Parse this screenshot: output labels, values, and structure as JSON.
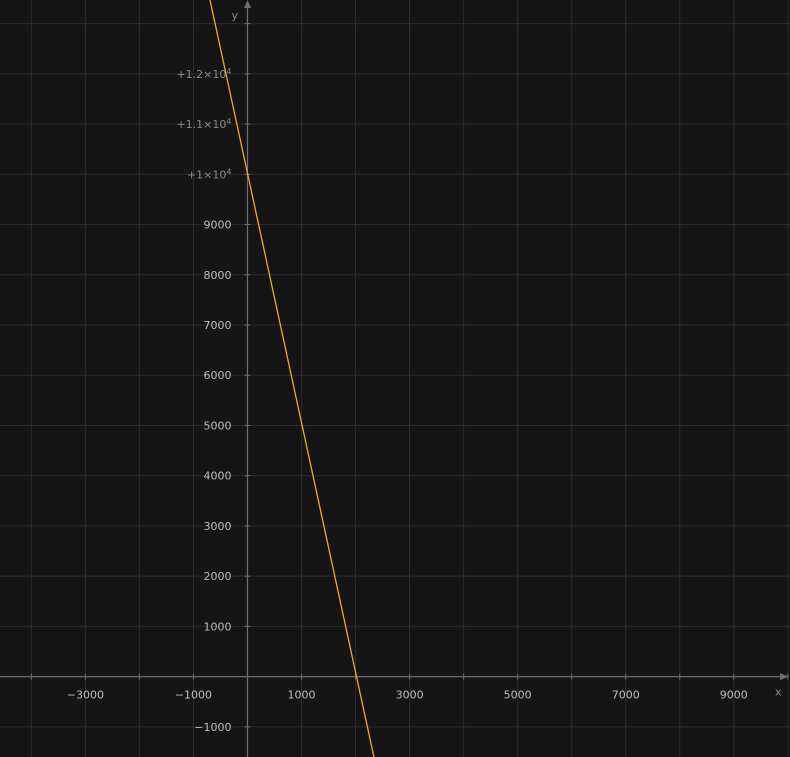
{
  "chart_data": {
    "type": "line",
    "xlabel": "x",
    "ylabel": "y",
    "xlim": [
      -4580,
      10040
    ],
    "ylim": [
      -1600,
      13470
    ],
    "grid": true,
    "x_grid_step": 1000,
    "y_grid_step": 1000,
    "x_ticks": [
      {
        "value": -3000,
        "label": "−3000"
      },
      {
        "value": -1000,
        "label": "−1000"
      },
      {
        "value": 1000,
        "label": "1000"
      },
      {
        "value": 3000,
        "label": "3000"
      },
      {
        "value": 5000,
        "label": "5000"
      },
      {
        "value": 7000,
        "label": "7000"
      },
      {
        "value": 9000,
        "label": "9000"
      }
    ],
    "y_ticks": [
      {
        "value": -1000,
        "label": "−1000",
        "sup": ""
      },
      {
        "value": 1000,
        "label": "1000",
        "sup": ""
      },
      {
        "value": 2000,
        "label": "2000",
        "sup": ""
      },
      {
        "value": 3000,
        "label": "3000",
        "sup": ""
      },
      {
        "value": 4000,
        "label": "4000",
        "sup": ""
      },
      {
        "value": 5000,
        "label": "5000",
        "sup": ""
      },
      {
        "value": 6000,
        "label": "6000",
        "sup": ""
      },
      {
        "value": 7000,
        "label": "7000",
        "sup": ""
      },
      {
        "value": 8000,
        "label": "8000",
        "sup": ""
      },
      {
        "value": 9000,
        "label": "9000",
        "sup": ""
      },
      {
        "value": 10000,
        "label": "+1×10",
        "sup": "4"
      },
      {
        "value": 11000,
        "label": "+1.1×10",
        "sup": "4"
      },
      {
        "value": 12000,
        "label": "+1.2×10",
        "sup": "4"
      }
    ],
    "series": [
      {
        "color": "#f5a623",
        "points": [
          [
            -700,
            13500
          ],
          [
            2350,
            -1650
          ]
        ]
      }
    ]
  }
}
